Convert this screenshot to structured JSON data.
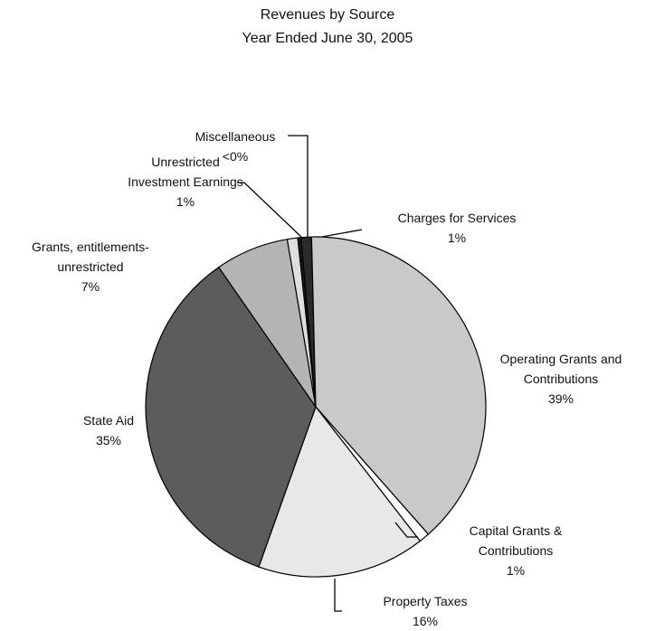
{
  "chart_data": {
    "type": "pie",
    "title": "Revenues by Source",
    "subtitle": "Year Ended June 30, 2005",
    "categories": [
      "Charges for Services",
      "Operating Grants and Contributions",
      "Capital Grants & Contributions",
      "Property Taxes",
      "State Aid",
      "Grants, entitlements-unrestricted",
      "Unrestricted Investment Earnings",
      "Miscellaneous"
    ],
    "values": [
      1,
      39,
      1,
      16,
      35,
      7,
      1,
      0.3
    ],
    "value_labels": [
      "1%",
      "39%",
      "1%",
      "16%",
      "35%",
      "7%",
      "1%",
      "<0%"
    ],
    "colors": [
      "#2a2a2a",
      "#c9c9c9",
      "#ffffff",
      "#e8e8e8",
      "#5c5c5c",
      "#b4b4b4",
      "#dedede",
      "#1a1a1a"
    ]
  }
}
